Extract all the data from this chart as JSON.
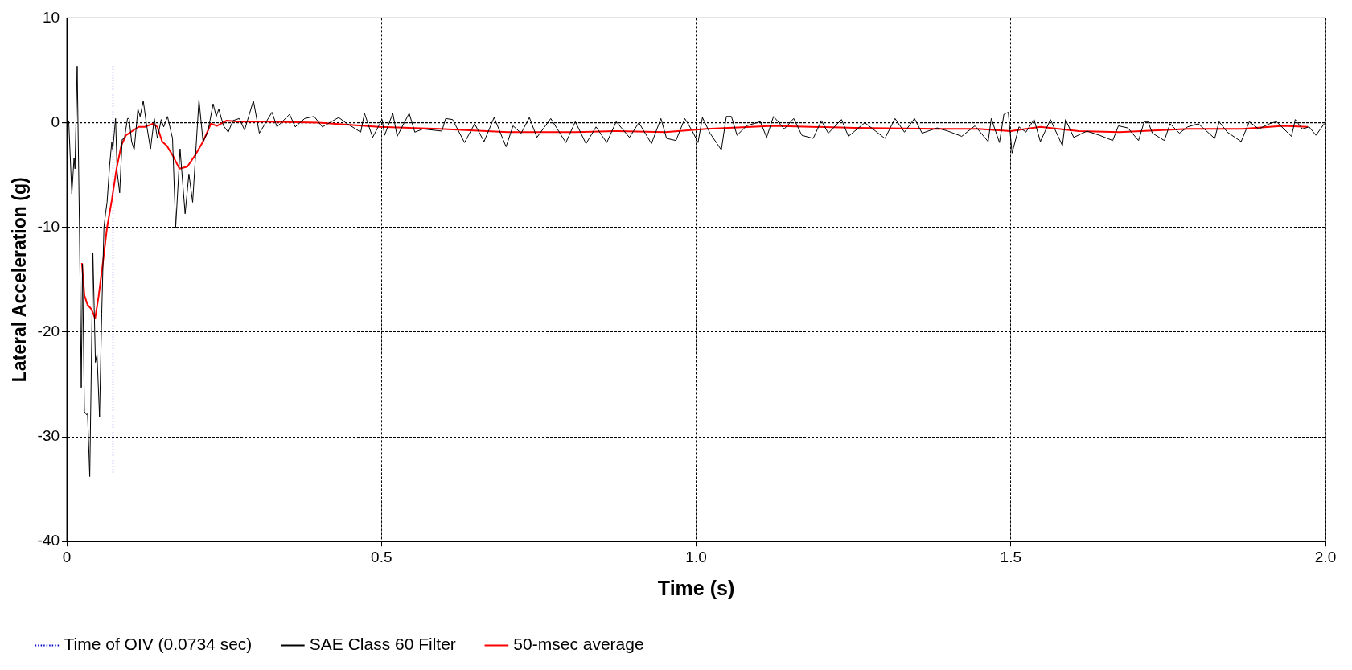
{
  "chart_data": {
    "type": "line",
    "xlabel": "Time (s)",
    "ylabel": "Lateral Acceleration (g)",
    "xlim": [
      0,
      2
    ],
    "xticks": [
      0,
      {
        "value": 0.5,
        "label": "0.5"
      },
      {
        "value": 1,
        "label": "1.0"
      },
      {
        "value": 1.5,
        "label": "1.5"
      },
      {
        "value": 2,
        "label": "2.0"
      }
    ],
    "ylim": [
      -40,
      10
    ],
    "yticks": [
      -40,
      -30,
      -20,
      -10,
      0,
      10
    ],
    "grid": true,
    "legend": "bottom",
    "marker": "none",
    "series": [
      {
        "name": "Time of OIV (0.0734 sec)",
        "color": "#0000cc",
        "line_style": "dotted",
        "x": [
          0.0734,
          0.0734
        ],
        "values": [
          5.4,
          -33.8
        ]
      },
      {
        "name": "SAE Class 60 Filter",
        "color": "#000000",
        "line_style": "solid",
        "x": [
          0,
          0.003,
          0.008,
          0.0115,
          0.013,
          0.0165,
          0.02,
          0.023,
          0.025,
          0.028,
          0.0315,
          0.033,
          0.0365,
          0.0415,
          0.0455,
          0.048,
          0.052,
          0.0555,
          0.059,
          0.0615,
          0.064,
          0.068,
          0.0715,
          0.073,
          0.0775,
          0.08,
          0.084,
          0.088,
          0.0915,
          0.0965,
          0.099,
          0.103,
          0.107,
          0.113,
          0.1165,
          0.1215,
          0.1265,
          0.133,
          0.139,
          0.144,
          0.15,
          0.154,
          0.16,
          0.168,
          0.173,
          0.18,
          0.188,
          0.194,
          0.2,
          0.21,
          0.2165,
          0.224,
          0.2325,
          0.2375,
          0.2415,
          0.249,
          0.2565,
          0.264,
          0.274,
          0.2825,
          0.289,
          0.2965,
          0.306,
          0.326,
          0.334,
          0.354,
          0.363,
          0.378,
          0.393,
          0.406,
          0.432,
          0.443,
          0.467,
          0.473,
          0.486,
          0.501,
          0.505,
          0.518,
          0.525,
          0.544,
          0.553,
          0.566,
          0.596,
          0.602,
          0.613,
          0.632,
          0.648,
          0.663,
          0.679,
          0.698,
          0.709,
          0.722,
          0.735,
          0.747,
          0.769,
          0.793,
          0.808,
          0.825,
          0.841,
          0.858,
          0.873,
          0.894,
          0.909,
          0.929,
          0.944,
          0.953,
          0.968,
          0.982,
          0.994,
          1.003,
          1.01,
          1.022,
          1.04,
          1.048,
          1.056,
          1.065,
          1.08,
          1.102,
          1.112,
          1.123,
          1.14,
          1.155,
          1.168,
          1.186,
          1.199,
          1.21,
          1.231,
          1.242,
          1.268,
          1.3,
          1.316,
          1.331,
          1.347,
          1.359,
          1.383,
          1.4,
          1.422,
          1.443,
          1.464,
          1.469,
          1.482,
          1.489,
          1.496,
          1.502,
          1.513,
          1.524,
          1.537,
          1.547,
          1.563,
          1.582,
          1.587,
          1.6,
          1.621,
          1.641,
          1.662,
          1.671,
          1.686,
          1.703,
          1.712,
          1.718,
          1.725,
          1.744,
          1.753,
          1.768,
          1.781,
          1.798,
          1.824,
          1.831,
          1.844,
          1.866,
          1.879,
          1.894,
          1.911,
          1.922,
          1.946,
          1.952,
          1.963,
          1.974,
          1.985,
          1.998
        ],
        "values": [
          0,
          0.2,
          -6.8,
          -3.4,
          -4.4,
          5.4,
          -9.4,
          -25.3,
          -13.5,
          -27.6,
          -27.9,
          -27.8,
          -33.8,
          -12.4,
          -22.9,
          -22.1,
          -28.1,
          -18.2,
          -10,
          -8.7,
          -7.6,
          -4.1,
          -1.8,
          -2.6,
          0.4,
          -4.7,
          -6.7,
          -1.6,
          -1.5,
          0.4,
          0.4,
          -1.8,
          -2.6,
          1.3,
          0.6,
          2.1,
          -0.1,
          -2.5,
          0.4,
          -1.5,
          0.3,
          -0.4,
          0.6,
          -1.5,
          -10,
          -2.5,
          -8.7,
          -4.9,
          -7.6,
          2.2,
          -1.8,
          -0.9,
          1.8,
          0.6,
          1.3,
          -0.3,
          -0.9,
          0.2,
          0.4,
          -0.7,
          0.6,
          2.1,
          -1,
          1,
          -0.4,
          0.8,
          -0.4,
          0.4,
          0.6,
          -0.4,
          0.5,
          0,
          -0.9,
          0.9,
          -1.4,
          0.3,
          -1.2,
          0.9,
          -1.3,
          0.9,
          -0.9,
          -0.6,
          -0.8,
          0.4,
          0.3,
          -1.9,
          -0.1,
          -1.8,
          0.5,
          -2.3,
          -0.3,
          -1,
          0.5,
          -1.4,
          0.4,
          -1.9,
          0.1,
          -2,
          -0.4,
          -1.9,
          0.1,
          -1.4,
          0,
          -2,
          0.4,
          -1.5,
          -1.7,
          0.4,
          -0.8,
          -1.9,
          0.5,
          -1,
          -2.6,
          0.6,
          0.6,
          -1.2,
          -0.3,
          0.1,
          -1.4,
          0.6,
          -0.6,
          0.4,
          -1.2,
          -1.5,
          0.2,
          -1,
          0.3,
          -1.3,
          0,
          -1.5,
          0.4,
          -0.9,
          0.4,
          -1,
          -0.5,
          -0.8,
          -1.3,
          -0.3,
          -1.8,
          0.4,
          -1.9,
          0.8,
          1,
          -2.9,
          -0.4,
          -0.9,
          0.3,
          -1.8,
          0.3,
          -2.2,
          0.3,
          -1.4,
          -0.8,
          -1.2,
          -1.7,
          -0.3,
          -0.5,
          -1.7,
          0.1,
          0.1,
          -1,
          -1.7,
          -0.1,
          -1,
          -0.4,
          -0.1,
          -1.5,
          0.1,
          -0.9,
          -1.8,
          0.1,
          -0.6,
          -0.1,
          0.1,
          -1.3,
          0.3,
          -0.6,
          -0.4,
          -1.2,
          -0.1
        ]
      },
      {
        "name": "50-msec average",
        "color": "#ff0000",
        "line_style": "solid",
        "x": [
          0.024,
          0.028,
          0.033,
          0.039,
          0.045,
          0.0505,
          0.0565,
          0.064,
          0.0715,
          0.079,
          0.0865,
          0.094,
          0.1015,
          0.114,
          0.124,
          0.1365,
          0.144,
          0.1515,
          0.159,
          0.169,
          0.179,
          0.1915,
          0.204,
          0.2165,
          0.229,
          0.239,
          0.254,
          0.274,
          0.294,
          0.3165,
          0.4,
          0.496,
          0.593,
          0.701,
          0.809,
          0.874,
          0.951,
          1.016,
          1.123,
          1.253,
          1.383,
          1.448,
          1.5,
          1.547,
          1.608,
          1.673,
          1.781,
          1.868,
          1.933,
          1.972
        ],
        "values": [
          -13.4,
          -16.5,
          -17.4,
          -17.8,
          -18.7,
          -16.6,
          -13.8,
          -10,
          -7.4,
          -4.4,
          -2.2,
          -1.2,
          -0.9,
          -0.4,
          -0.4,
          -0.1,
          -0.4,
          -1.8,
          -2.2,
          -3.2,
          -4.4,
          -4.2,
          -3.1,
          -1.8,
          -0.1,
          -0.3,
          0.2,
          0.1,
          0.1,
          0.1,
          0,
          -0.4,
          -0.6,
          -0.9,
          -0.9,
          -0.8,
          -0.9,
          -0.6,
          -0.3,
          -0.5,
          -0.6,
          -0.6,
          -0.8,
          -0.4,
          -0.8,
          -0.9,
          -0.6,
          -0.6,
          -0.3,
          -0.4
        ]
      }
    ]
  }
}
